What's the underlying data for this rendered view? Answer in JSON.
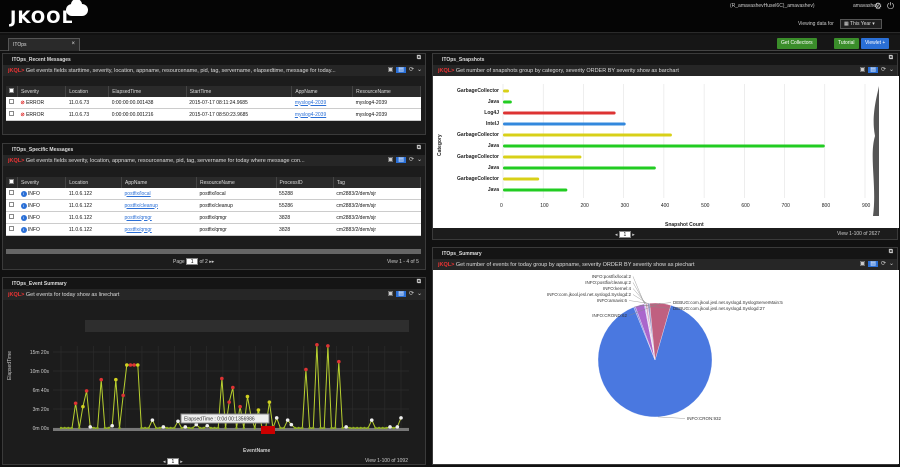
{
  "brand": {
    "logo": "JKOOL"
  },
  "top": {
    "user_account": "(R_amavashevHusel6C)_amavashev)",
    "username": "amavashev",
    "viewing_label": "Viewing data for",
    "range": "This Year"
  },
  "tabs": [
    {
      "label": "ITOps"
    }
  ],
  "buttons": {
    "get_collectors": "Get Collectors",
    "tutorial": "Tutorial",
    "viewlet": "Viewlet +"
  },
  "recent": {
    "title": "ITOps_Recent Messages",
    "query": "Get events fields starttime, severity, location, appname, resourcename, pid, tag, servername, elapsedtime, message for today...",
    "jkql": "jKQL>",
    "columns": [
      "Severity",
      "Location",
      "ElapsedTime",
      "StartTime",
      "AppName",
      "ResourceName"
    ],
    "rows": [
      [
        "ERROR",
        "11.0.6.73",
        "0:00:00:00.001438",
        "2015-07-17 08:11:24.9685",
        "myslog4-2039",
        "myslog4-2039"
      ],
      [
        "ERROR",
        "11.0.6.73",
        "0:00:00:00.001216",
        "2015-07-17 08:50:23.9685",
        "myslog4-2039",
        "myslog4-2039"
      ]
    ]
  },
  "specific": {
    "title": "ITOps_Specific Messages",
    "query": "Get events fields severity, location, appname, resourcename, pid, tag, servername for today where message con...",
    "jkql": "jKQL>",
    "columns": [
      "Severity",
      "Location",
      "AppName",
      "ResourceName",
      "ProcessID",
      "Tag"
    ],
    "rows": [
      [
        "INFO",
        "11.0.6.122",
        "postfix/local",
        "postfix/local",
        "55288",
        "cm2883/2/dem/sjr"
      ],
      [
        "INFO",
        "11.0.6.122",
        "postfix/cleanup",
        "postfix/cleanup",
        "55286",
        "cm2883/2/dem/sjr"
      ],
      [
        "INFO",
        "11.0.6.122",
        "postfix/qmgr",
        "postfix/qmgr",
        "3828",
        "cm2883/2/dem/sjr"
      ],
      [
        "INFO",
        "11.0.6.122",
        "postfix/qmgr",
        "postfix/qmgr",
        "3828",
        "cm2883/2/dem/sjr"
      ]
    ],
    "pager_label": "Page",
    "page": "1",
    "of_pages": "of 2",
    "view_count": "View 1 - 4 of 5"
  },
  "summary": {
    "title": "ITOps_Event Summary",
    "query": "Get events for today show as linechart",
    "jkql": "jKQL>",
    "ylabel": "ElapsedTime",
    "xlabel": "EventName",
    "tooltip": "ElapsedTime : 0:0d 00:1356986",
    "page": "1",
    "view_count": "View 1-100 of 1092"
  },
  "snapshots": {
    "title": "ITOps_Snapshots",
    "query": "Get number of snapshots group by category, severity ORDER BY severity show as barchart",
    "jkql": "jKQL>",
    "page": "1",
    "view_count": "View 1-100 of 2627"
  },
  "pie": {
    "title": "ITOps_Summary",
    "query": "Get number of events for today group by appname, severity ORDER BY severity show as piechart",
    "jkql": "jKQL>"
  },
  "chart_data": [
    {
      "type": "bar",
      "orientation": "horizontal",
      "categories": [
        "GarbageCollector",
        "Java",
        "Log4J",
        "IntelJ",
        "GarbageCollector",
        "Java",
        "GarbageCollector",
        "Java",
        "GarbageCollector",
        "Java"
      ],
      "values": [
        15,
        22,
        280,
        305,
        420,
        800,
        195,
        380,
        90,
        160
      ],
      "colors": [
        "#d8d018",
        "#22cc22",
        "#dd3333",
        "#3388dd",
        "#d8d018",
        "#22cc22",
        "#d8d018",
        "#22cc22",
        "#d8d018",
        "#22cc22"
      ],
      "xlabel": "Snapshot Count",
      "ylabel": "Category",
      "xlim": [
        0,
        900
      ],
      "xticks": [
        "0",
        "100",
        "200",
        "300",
        "400",
        "500",
        "600",
        "700",
        "800",
        "900"
      ]
    },
    {
      "type": "line",
      "y_ticks": [
        "15m 20s",
        "10m 00s",
        "6m 40s",
        "3m 20s",
        "0m 00s"
      ],
      "xlabel": "EventName",
      "ylabel": "ElapsedTime",
      "series": [
        {
          "values": [
            0,
            0,
            0,
            0,
            2.2,
            0,
            1.9,
            3.3,
            0.1,
            0,
            0,
            4.3,
            0,
            0,
            0.2,
            4.3,
            0,
            2.9,
            5.6,
            5.6,
            5.6,
            5.6,
            0,
            0,
            0,
            0.7,
            0,
            0,
            0.1,
            0,
            0,
            0,
            0.6,
            0,
            0.1,
            0,
            0,
            0.3,
            0,
            0,
            0.2,
            0,
            0,
            0,
            4.4,
            0,
            2.3,
            3.6,
            0,
            1.9,
            0,
            2.8,
            1.0,
            0,
            1.6,
            0,
            0,
            2.3,
            0,
            0.9,
            0,
            0,
            0.7,
            0.3,
            0,
            0,
            0,
            5.2,
            0,
            0,
            7.4,
            0,
            0,
            7.3,
            0,
            0,
            5.9,
            0,
            0.1,
            0,
            0,
            0,
            0,
            0,
            0,
            0.7,
            0,
            0,
            0,
            0,
            0.1,
            0,
            0.1,
            0.9
          ]
        }
      ]
    },
    {
      "type": "pie",
      "labels": [
        "INFO:CRON:932",
        "DEBUG:com.jkool.jesl.net.syslogd.SyslogServerMain:5",
        "DEBUG:com.jkool.jesl.net.syslogd.Syslogd:27",
        "INFO:postfix/local:2",
        "INFO:postfix/cleanup:2",
        "INFO:kernel:4",
        "INFO:com.jkool.jesl.net.syslogd.Syslogd:2",
        "INFO:amavis:6",
        "INFO:CROND:62"
      ],
      "values": [
        932,
        5,
        27,
        2,
        2,
        4,
        2,
        6,
        62
      ],
      "colors": [
        "#4a78e0",
        "#8888dd",
        "#aa66cc",
        "#9999ee",
        "#bbbbee",
        "#cc88aa",
        "#dd99bb",
        "#9999cc",
        "#c06080"
      ]
    }
  ]
}
